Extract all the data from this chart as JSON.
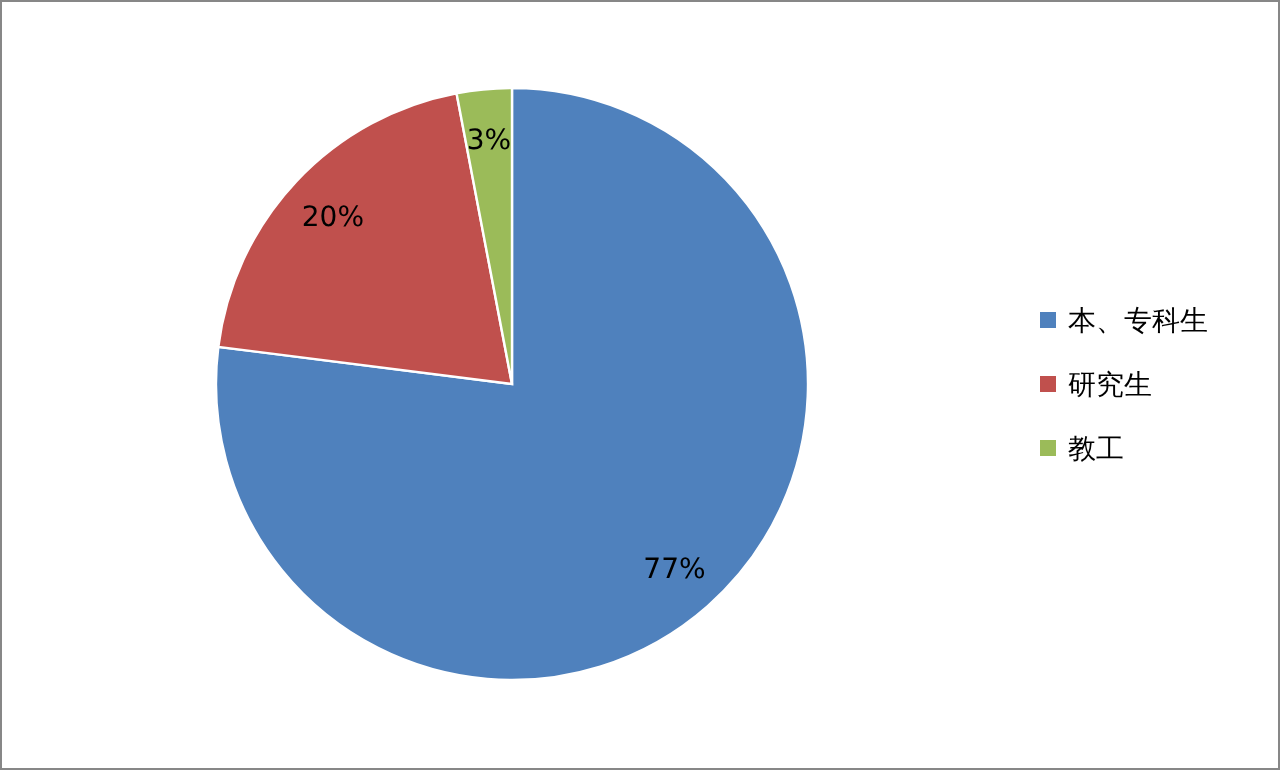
{
  "chart_data": {
    "type": "pie",
    "categories": [
      "本、专科生",
      "研究生",
      "教工"
    ],
    "values": [
      77,
      20,
      3
    ],
    "colors": [
      "#4f81bd",
      "#c0504d",
      "#9bbb59"
    ],
    "value_labels": [
      "77%",
      "20%",
      "3%"
    ],
    "legend": "right"
  }
}
